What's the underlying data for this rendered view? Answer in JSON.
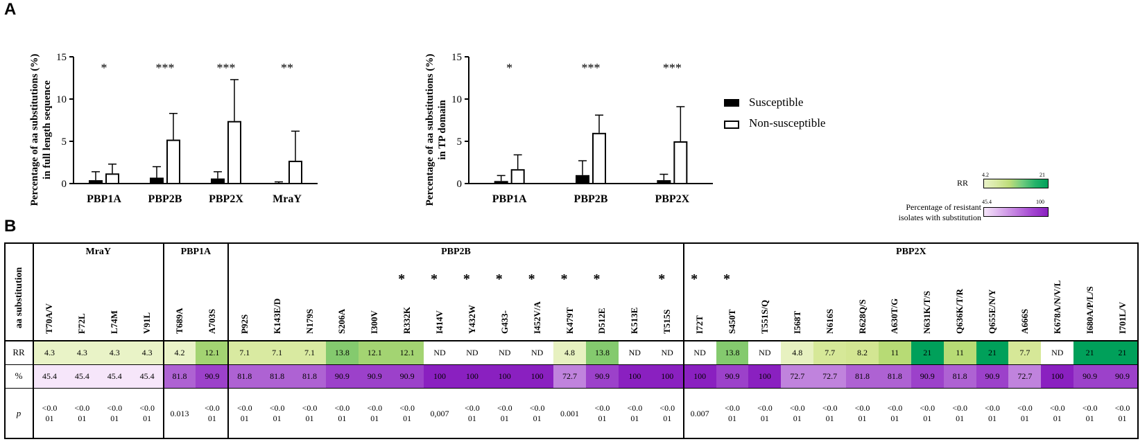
{
  "panel_a_label": "A",
  "panel_b_label": "B",
  "legend": {
    "susceptible": "Susceptible",
    "non_susceptible": "Non-susceptible",
    "susceptible_color": "#000000",
    "non_susceptible_color": "#ffffff"
  },
  "chart_data": [
    {
      "type": "bar",
      "ylabel_line1": "Percentage of aa substitutions (%)",
      "ylabel_line2": "in full length sequence",
      "categories": [
        "PBP1A",
        "PBP2B",
        "PBP2X",
        "MraY"
      ],
      "significance": [
        "*",
        "***",
        "***",
        "**"
      ],
      "ylim": [
        0,
        15
      ],
      "yticks": [
        "0",
        "5",
        "10",
        "15"
      ],
      "series": [
        {
          "name": "Susceptible",
          "values": [
            0.4,
            0.7,
            0.6,
            0.05
          ],
          "errors": [
            1.0,
            1.3,
            0.8,
            0.15
          ]
        },
        {
          "name": "Non-susceptible",
          "values": [
            1.2,
            5.2,
            7.4,
            2.7
          ],
          "errors": [
            1.1,
            3.1,
            4.9,
            3.5
          ]
        }
      ]
    },
    {
      "type": "bar",
      "ylabel_line1": "Percentage of aa substitutions (%)",
      "ylabel_line2": "in TP domain",
      "categories": [
        "PBP1A",
        "PBP2B",
        "PBP2X"
      ],
      "significance": [
        "*",
        "***",
        "***"
      ],
      "ylim": [
        0,
        15
      ],
      "yticks": [
        "0",
        "5",
        "10",
        "15"
      ],
      "series": [
        {
          "name": "Susceptible",
          "values": [
            0.3,
            1.0,
            0.4
          ],
          "errors": [
            0.65,
            1.7,
            0.7
          ]
        },
        {
          "name": "Non-susceptible",
          "values": [
            1.7,
            6.0,
            5.0
          ],
          "errors": [
            1.7,
            2.1,
            4.1
          ]
        }
      ]
    },
    {
      "type": "table",
      "header_label": "aa substitution",
      "row_labels": {
        "rr": "RR",
        "pct": "%",
        "p": "p"
      },
      "scales": {
        "rr_label": "RR",
        "rr_min": "4.2",
        "rr_max": "21",
        "rr_min_value": 4.2,
        "rr_max_value": 21,
        "pct_label_line1": "Percentage of resistant",
        "pct_label_line2": "isolates with substitution",
        "pct_min": "45.4",
        "pct_max": "100",
        "pct_min_value": 45.4,
        "pct_max_value": 100
      },
      "groups": [
        {
          "name": "MraY",
          "columns": [
            {
              "sub": "T70A/V",
              "star": "",
              "rr": "4.3",
              "pct": "45.4",
              "p": [
                "<0.0",
                "01"
              ]
            },
            {
              "sub": "F72L",
              "star": "",
              "rr": "4.3",
              "pct": "45.4",
              "p": [
                "<0.0",
                "01"
              ]
            },
            {
              "sub": "L74M",
              "star": "",
              "rr": "4.3",
              "pct": "45.4",
              "p": [
                "<0.0",
                "01"
              ]
            },
            {
              "sub": "V91L",
              "star": "",
              "rr": "4.3",
              "pct": "45.4",
              "p": [
                "<0.0",
                "01"
              ]
            }
          ]
        },
        {
          "name": "PBP1A",
          "columns": [
            {
              "sub": "T689A",
              "star": "",
              "rr": "4.2",
              "pct": "81.8",
              "p": [
                "0.013"
              ]
            },
            {
              "sub": "A703S",
              "star": "",
              "rr": "12.1",
              "pct": "90.9",
              "p": [
                "<0.0",
                "01"
              ]
            }
          ]
        },
        {
          "name": "PBP2B",
          "columns": [
            {
              "sub": "P92S",
              "star": "",
              "rr": "7.1",
              "pct": "81.8",
              "p": [
                "<0.0",
                "01"
              ]
            },
            {
              "sub": "K143E/D",
              "star": "",
              "rr": "7.1",
              "pct": "81.8",
              "p": [
                "<0.0",
                "01"
              ]
            },
            {
              "sub": "N179S",
              "star": "",
              "rr": "7.1",
              "pct": "81.8",
              "p": [
                "<0.0",
                "01"
              ]
            },
            {
              "sub": "S206A",
              "star": "",
              "rr": "13.8",
              "pct": "90.9",
              "p": [
                "<0.0",
                "01"
              ]
            },
            {
              "sub": "I300V",
              "star": "",
              "rr": "12.1",
              "pct": "90.9",
              "p": [
                "<0.0",
                "01"
              ]
            },
            {
              "sub": "R332K",
              "star": "*",
              "rr": "12.1",
              "pct": "90.9",
              "p": [
                "<0.0",
                "01"
              ]
            },
            {
              "sub": "I414V",
              "star": "*",
              "rr": "ND",
              "pct": "100",
              "p": [
                "0,007"
              ]
            },
            {
              "sub": "Y432W",
              "star": "*",
              "rr": "ND",
              "pct": "100",
              "p": [
                "<0.0",
                "01"
              ]
            },
            {
              "sub": "G433-",
              "star": "*",
              "rr": "ND",
              "pct": "100",
              "p": [
                "<0.0",
                "01"
              ]
            },
            {
              "sub": "I452V/A",
              "star": "*",
              "rr": "ND",
              "pct": "100",
              "p": [
                "<0.0",
                "01"
              ]
            },
            {
              "sub": "K479T",
              "star": "*",
              "rr": "4.8",
              "pct": "72.7",
              "p": [
                "0.001"
              ]
            },
            {
              "sub": "D512E",
              "star": "*",
              "rr": "13.8",
              "pct": "90.9",
              "p": [
                "<0.0",
                "01"
              ]
            },
            {
              "sub": "K513E",
              "star": "",
              "rr": "ND",
              "pct": "100",
              "p": [
                "<0.0",
                "01"
              ]
            },
            {
              "sub": "T515S",
              "star": "*",
              "rr": "ND",
              "pct": "100",
              "p": [
                "<0.0",
                "01"
              ]
            }
          ]
        },
        {
          "name": "PBP2X",
          "columns": [
            {
              "sub": "I72T",
              "star": "*",
              "rr": "ND",
              "pct": "100",
              "p": [
                "0.007"
              ]
            },
            {
              "sub": "S450T",
              "star": "*",
              "rr": "13.8",
              "pct": "90.9",
              "p": [
                "<0.0",
                "01"
              ]
            },
            {
              "sub": "T551S/Q",
              "star": "",
              "rr": "ND",
              "pct": "100",
              "p": [
                "<0.0",
                "01"
              ]
            },
            {
              "sub": "I568T",
              "star": "",
              "rr": "4.8",
              "pct": "72.7",
              "p": [
                "<0.0",
                "01"
              ]
            },
            {
              "sub": "N616S",
              "star": "",
              "rr": "7.7",
              "pct": "72.7",
              "p": [
                "<0.0",
                "01"
              ]
            },
            {
              "sub": "R628Q/S",
              "star": "",
              "rr": "8.2",
              "pct": "81.8",
              "p": [
                "<0.0",
                "01"
              ]
            },
            {
              "sub": "A630T/G",
              "star": "",
              "rr": "11",
              "pct": "81.8",
              "p": [
                "<0.0",
                "01"
              ]
            },
            {
              "sub": "N631K/T/S",
              "star": "",
              "rr": "21",
              "pct": "90.9",
              "p": [
                "<0.0",
                "01"
              ]
            },
            {
              "sub": "Q636K/T/R",
              "star": "",
              "rr": "11",
              "pct": "81.8",
              "p": [
                "<0.0",
                "01"
              ]
            },
            {
              "sub": "Q655E/N/Y",
              "star": "",
              "rr": "21",
              "pct": "90.9",
              "p": [
                "<0.0",
                "01"
              ]
            },
            {
              "sub": "A666S",
              "star": "",
              "rr": "7.7",
              "pct": "72.7",
              "p": [
                "<0.0",
                "01"
              ]
            },
            {
              "sub": "K678A/N/V/L",
              "star": "",
              "rr": "ND",
              "pct": "100",
              "p": [
                "<0.0",
                "01"
              ]
            },
            {
              "sub": "I680A/P/L/S",
              "star": "",
              "rr": "21",
              "pct": "90.9",
              "p": [
                "<0.0",
                "01"
              ]
            },
            {
              "sub": "I701L/V",
              "star": "",
              "rr": "21",
              "pct": "90.9",
              "p": [
                "<0.0",
                "01"
              ]
            }
          ]
        }
      ]
    }
  ]
}
